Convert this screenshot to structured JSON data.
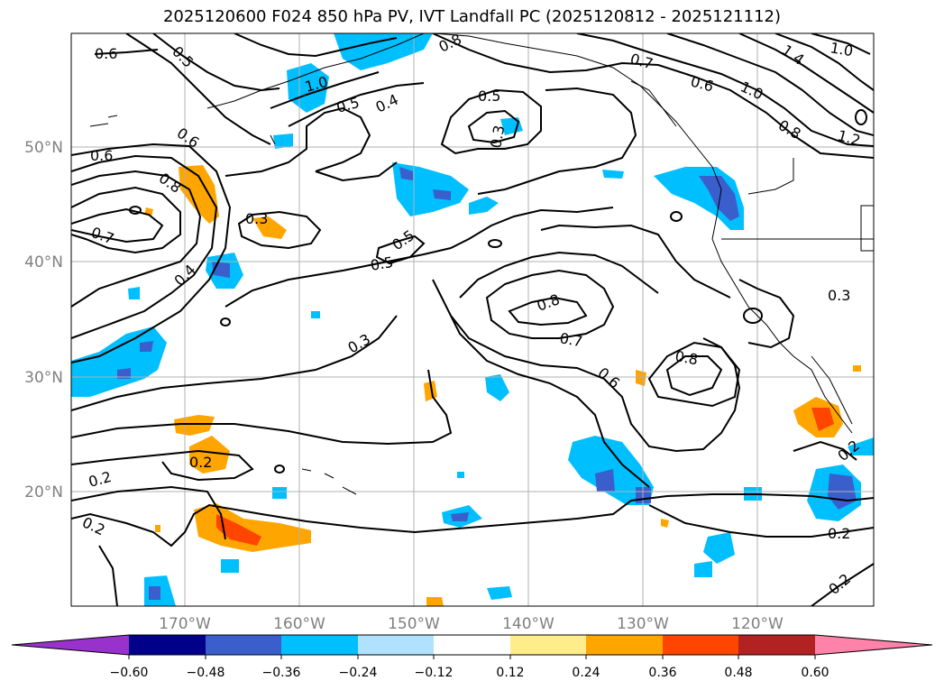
{
  "title": "2025120600 F024 850 hPa PV, IVT Landfall PC (2025120812 - 2025121112)",
  "lat_labels": [
    "50°N",
    "40°N",
    "30°N",
    "20°N"
  ],
  "lon_labels": [
    "170°W",
    "160°W",
    "150°W",
    "140°W",
    "130°W",
    "120°W"
  ],
  "colorbar": {
    "ticks": [
      "−0.60",
      "−0.48",
      "−0.36",
      "−0.24",
      "−0.12",
      "0.12",
      "0.24",
      "0.36",
      "0.48",
      "0.60"
    ],
    "colors": [
      "#9932cc",
      "#00008b",
      "#3a5fcd",
      "#00bfff",
      "#b0e2ff",
      "#ffffff",
      "#ffec8b",
      "#ffa500",
      "#ff4500",
      "#b22222",
      "#ff82ab"
    ]
  },
  "contour_labels": [
    "0.6",
    "0.5",
    "0.6",
    "0.6",
    "0.8",
    "0.7",
    "0.4",
    "0.5",
    "0.4",
    "0.3",
    "0.5",
    "0.5",
    "0.5",
    "0.8",
    "0.7",
    "0.6",
    "0.8",
    "0.3",
    "0.2",
    "0.2",
    "0.2",
    "0.2",
    "0.2",
    "0.3",
    "1.0",
    "0.8",
    "0.7",
    "0.6",
    "1.0",
    "1.4",
    "1.0",
    "0.8",
    "1.2",
    "0.3",
    "0.2"
  ]
}
